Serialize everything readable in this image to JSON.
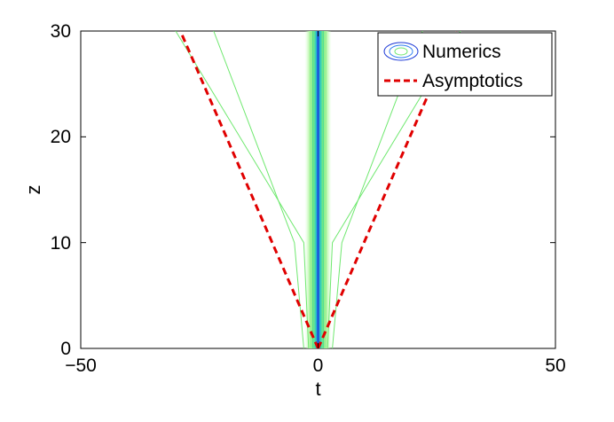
{
  "chart_data": {
    "type": "contour",
    "xlabel": "t",
    "ylabel": "z",
    "xlim": [
      -50,
      50
    ],
    "ylim": [
      0,
      30
    ],
    "xticks": [
      -50,
      0,
      50
    ],
    "yticks": [
      0,
      10,
      20,
      30
    ],
    "xtick_labels": [
      "−50",
      "0",
      "50"
    ],
    "ytick_labels": [
      "0",
      "10",
      "20",
      "30"
    ],
    "grid": false,
    "legend_position": "top-right",
    "series": [
      {
        "name": "Numerics",
        "style": "contour",
        "colors": [
          "#1a37d6",
          "#2f7ff0",
          "#22c7c0",
          "#6fe86f"
        ],
        "central_band": {
          "t_center": 0,
          "z_range": [
            0,
            30
          ]
        },
        "side_contours": [
          {
            "points": [
              [
                -3,
                0
              ],
              [
                -5,
                10
              ],
              [
                -22,
                30
              ]
            ]
          },
          {
            "points": [
              [
                -2,
                0
              ],
              [
                -3,
                10
              ],
              [
                -30,
                30
              ]
            ]
          },
          {
            "points": [
              [
                3,
                0
              ],
              [
                5,
                10
              ],
              [
                22,
                30
              ]
            ]
          },
          {
            "points": [
              [
                2,
                0
              ],
              [
                3,
                10
              ],
              [
                30,
                30
              ]
            ]
          }
        ]
      },
      {
        "name": "Asymptotics",
        "style": "dashed",
        "color": "#e00000",
        "lines": [
          {
            "points": [
              [
                0,
                0
              ],
              [
                -29,
                30
              ]
            ]
          },
          {
            "points": [
              [
                0,
                0
              ],
              [
                29,
                30
              ]
            ]
          }
        ]
      }
    ]
  }
}
